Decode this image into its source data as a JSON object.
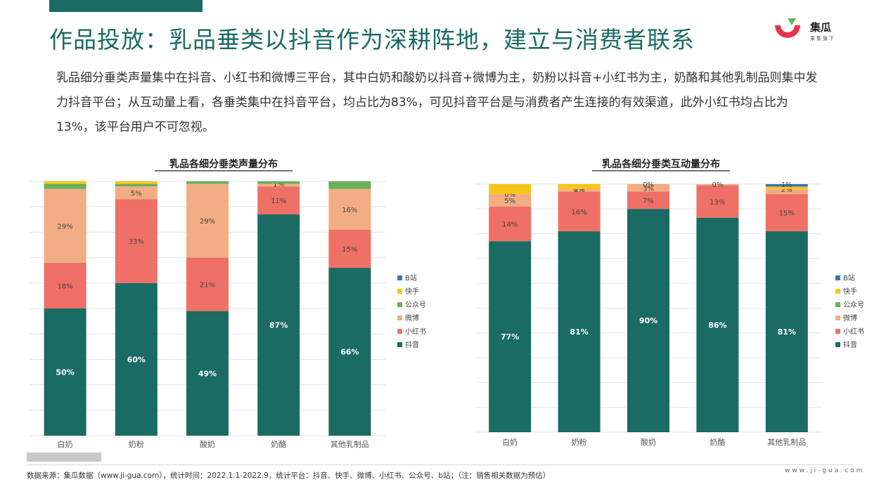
{
  "header": {
    "title": "作品投放：乳品垂类以抖音作为深耕阵地，建立与消费者联系",
    "logo_name": "集瓜",
    "logo_tagline": "果集旗下"
  },
  "description": "乳品细分垂类声量集中在抖音、小红书和微博三平台，其中白奶和酸奶以抖音+微博为主，奶粉以抖音+小红书为主，奶酪和其他乳制品则集中发力抖音平台；从互动量上看，各垂类集中在抖音平台，均占比为83%，可见抖音平台是与消费者产生连接的有效渠道，此外小红书均占比为13%，该平台用户不可忽视。",
  "footer": {
    "source": "数据来源：集瓜数据（www.ji-gua.com），统计时间：2022.1.1-2022.9，统计平台：抖音、快手、微博、小红书、公众号、b站；（注：销售相关数据为预估）",
    "website": "www.ji-gua.com"
  },
  "colors": {
    "brand": "#1a6b63",
    "douyin": "#1a6b63",
    "xiaohongshu": "#ee7066",
    "weibo": "#f2ad82",
    "gongzhonghao": "#6aaf5c",
    "kuaishou": "#f6c618",
    "bilibili": "#3a74b8"
  },
  "chart_data": [
    {
      "type": "bar",
      "stacked": true,
      "normalized": true,
      "title": "乳品各细分垂类声量分布",
      "categories": [
        "白奶",
        "奶粉",
        "酸奶",
        "奶酪",
        "其他乳制品"
      ],
      "legend": [
        "B站",
        "快手",
        "公众号",
        "微博",
        "小红书",
        "抖音"
      ],
      "legend_position": "right",
      "series": [
        {
          "name": "抖音",
          "values": [
            50,
            60,
            49,
            87,
            66
          ],
          "labels": [
            "50%",
            "60%",
            "49%",
            "87%",
            "66%"
          ]
        },
        {
          "name": "小红书",
          "values": [
            18,
            33,
            21,
            11,
            15
          ],
          "labels": [
            "18%",
            "33%",
            "21%",
            "11%",
            "15%"
          ]
        },
        {
          "name": "微博",
          "values": [
            29,
            5,
            29,
            1,
            16
          ],
          "labels": [
            "29%",
            "5%",
            "29%",
            "1%",
            "16%"
          ]
        },
        {
          "name": "公众号",
          "values": [
            2,
            1,
            1,
            1,
            3
          ],
          "labels": [
            "",
            "",
            "",
            "",
            ""
          ]
        },
        {
          "name": "快手",
          "values": [
            1,
            1,
            0,
            0,
            0
          ],
          "labels": [
            "",
            "",
            "",
            "",
            ""
          ]
        },
        {
          "name": "B站",
          "values": [
            0,
            0,
            0,
            0,
            0
          ],
          "labels": [
            "",
            "",
            "",
            "",
            ""
          ]
        }
      ]
    },
    {
      "type": "bar",
      "stacked": true,
      "normalized": true,
      "title": "乳品各细分垂类互动量分布",
      "categories": [
        "白奶",
        "奶粉",
        "酸奶",
        "奶酪",
        "其他乳制品"
      ],
      "legend": [
        "B站",
        "快手",
        "公众号",
        "微博",
        "小红书",
        "抖音"
      ],
      "legend_position": "right",
      "series": [
        {
          "name": "抖音",
          "values": [
            77,
            81,
            90,
            86,
            81
          ],
          "labels": [
            "77%",
            "81%",
            "90%",
            "86%",
            "81%"
          ]
        },
        {
          "name": "小红书",
          "values": [
            14,
            16,
            7,
            13,
            15
          ],
          "labels": [
            "14%",
            "16%",
            "7%",
            "13%",
            "15%"
          ]
        },
        {
          "name": "微博",
          "values": [
            5,
            1,
            3,
            0.5,
            2
          ],
          "labels": [
            "5%",
            "1%",
            "3%",
            "",
            "2%"
          ]
        },
        {
          "name": "公众号",
          "values": [
            0,
            0,
            0,
            0,
            0
          ],
          "labels": [
            "0%",
            "0%",
            "0%",
            "0%",
            ""
          ]
        },
        {
          "name": "快手",
          "values": [
            4,
            2,
            0,
            0,
            1
          ],
          "labels": [
            "",
            "",
            "",
            "",
            ""
          ]
        },
        {
          "name": "B站",
          "values": [
            0,
            0,
            0,
            0,
            1
          ],
          "labels": [
            "",
            "",
            "",
            "",
            "1%"
          ]
        }
      ]
    }
  ]
}
